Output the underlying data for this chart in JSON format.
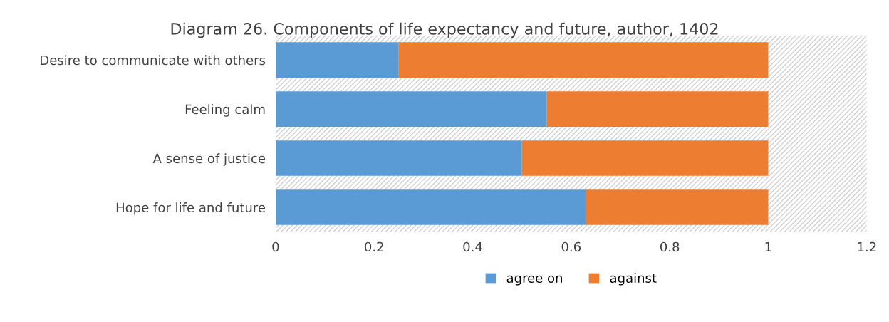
{
  "chart_data": {
    "type": "bar",
    "orientation": "horizontal",
    "stacked": true,
    "title": "Diagram 26. Components of life expectancy and future, author, 1402",
    "categories": [
      "Desire to communicate with others",
      "Feeling calm",
      "A sense of justice",
      "Hope for life and future"
    ],
    "series": [
      {
        "name": "agree on",
        "color": "#5b9bd5",
        "values": [
          0.25,
          0.55,
          0.5,
          0.63
        ]
      },
      {
        "name": "against",
        "color": "#ed7d31",
        "values": [
          0.75,
          0.45,
          0.5,
          0.37
        ]
      }
    ],
    "xlim": [
      0,
      1.2
    ],
    "xticks": [
      0,
      0.2,
      0.4,
      0.6,
      0.8,
      1,
      1.2
    ],
    "legend": "bottom"
  }
}
